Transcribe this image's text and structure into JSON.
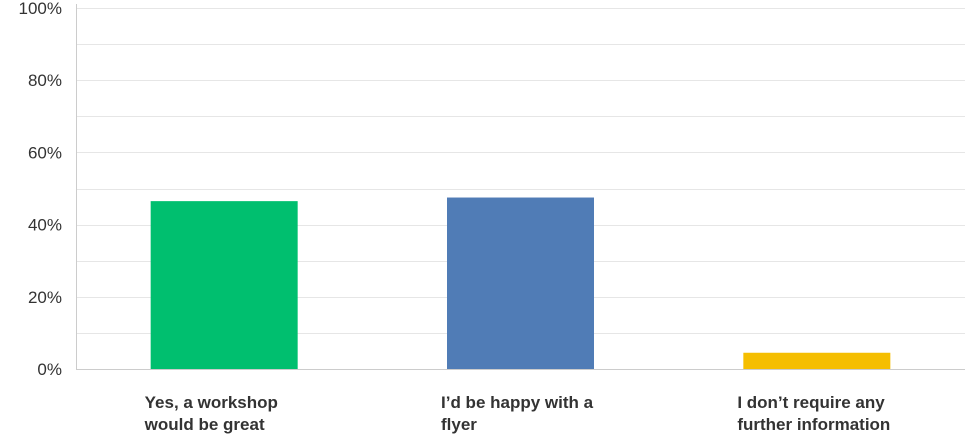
{
  "chart_data": {
    "type": "bar",
    "categories": [
      [
        "Yes, a workshop",
        "would be great"
      ],
      [
        "I’d be happy with a",
        "flyer"
      ],
      [
        "I don’t require any",
        "further information"
      ]
    ],
    "values": [
      46.5,
      47.5,
      4.5
    ],
    "colors": [
      "#00bf6f",
      "#507cb6",
      "#f5be00"
    ],
    "ylim": [
      0,
      100
    ],
    "yticks": [
      0,
      20,
      40,
      60,
      80,
      100
    ],
    "ytick_labels": [
      "0%",
      "20%",
      "40%",
      "60%",
      "80%",
      "100%"
    ],
    "minor_gridlines": [
      10,
      30,
      50,
      70,
      90
    ],
    "grid": true,
    "title": "",
    "xlabel": "",
    "ylabel": ""
  }
}
